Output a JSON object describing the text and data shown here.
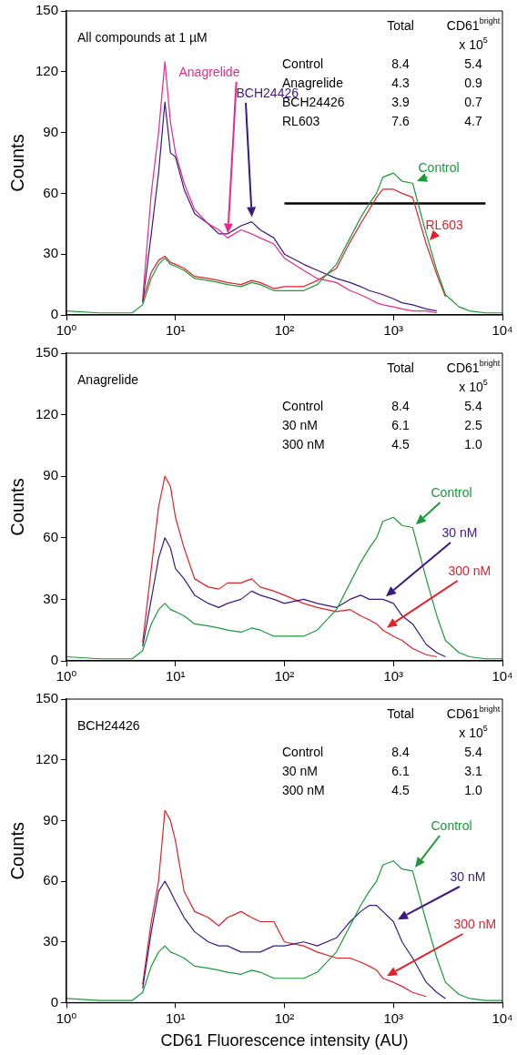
{
  "chart_data": [
    {
      "type": "line",
      "ylabel": "Counts",
      "log": "x",
      "xlim": [
        1,
        10000
      ],
      "ylim": [
        0,
        150
      ],
      "xticks": [
        {
          "value": 1,
          "label": "10⁰"
        },
        {
          "value": 10,
          "label": "10¹"
        },
        {
          "value": 100,
          "label": "10²"
        },
        {
          "value": 1000,
          "label": "10³"
        },
        {
          "value": 10000,
          "label": "10⁴"
        }
      ],
      "yticks": [
        0,
        30,
        60,
        90,
        120,
        150
      ],
      "legend": false,
      "grid": false,
      "x": [
        1,
        2,
        3,
        4,
        5,
        6,
        7,
        8,
        9,
        10,
        12,
        15,
        20,
        25,
        30,
        40,
        50,
        60,
        80,
        100,
        150,
        200,
        300,
        400,
        500,
        600,
        700,
        800,
        1000,
        1200,
        1500,
        2000,
        2500,
        3000,
        4000,
        5000,
        7000,
        10000
      ],
      "series": [
        {
          "name": "Control",
          "color": "#1a9a3a",
          "values": [
            2,
            1,
            1,
            1,
            5,
            18,
            25,
            28,
            25,
            24,
            22,
            18,
            17,
            16,
            15,
            14,
            16,
            15,
            12,
            12,
            12,
            15,
            25,
            38,
            48,
            55,
            60,
            68,
            70,
            66,
            65,
            40,
            22,
            10,
            4,
            2,
            1,
            1
          ]
        },
        {
          "name": "Anagrelide",
          "color": "#e8288c",
          "values": [
            null,
            null,
            null,
            null,
            8,
            60,
            90,
            125,
            95,
            80,
            65,
            52,
            45,
            42,
            38,
            42,
            40,
            38,
            35,
            28,
            22,
            18,
            16,
            12,
            10,
            8,
            6,
            5,
            4,
            3,
            2,
            2,
            1,
            null,
            null,
            null,
            null,
            null
          ]
        },
        {
          "name": "BCH24426",
          "color": "#3a1a80",
          "values": [
            null,
            null,
            null,
            null,
            6,
            40,
            70,
            105,
            80,
            78,
            62,
            50,
            45,
            40,
            40,
            44,
            46,
            42,
            38,
            30,
            25,
            22,
            18,
            16,
            14,
            12,
            11,
            10,
            8,
            6,
            5,
            3,
            2,
            null,
            null,
            null,
            null,
            null
          ]
        },
        {
          "name": "RL603",
          "color": "#e0202a",
          "values": [
            null,
            null,
            null,
            null,
            7,
            21,
            27,
            29,
            26,
            25,
            23,
            19,
            18,
            17,
            16,
            15,
            17,
            16,
            13,
            14,
            14,
            17,
            23,
            36,
            45,
            52,
            58,
            62,
            62,
            60,
            58,
            35,
            20,
            9,
            null,
            null,
            null,
            null
          ]
        },
        {
          "type": "line",
          "color": "#000000",
          "x": [
            100,
            7000
          ],
          "values": [
            55,
            55
          ]
        }
      ],
      "annotations": [
        "All compounds at 1 µM",
        "\tTotal\tCD61$^{bright}$",
        "\t\tx 10$^{5}$",
        "Control\t8.4\t5.4",
        "Anagrelide\t4.3\t0.9",
        "BCH24426\t3.9\t0.7",
        "RL603\t7.6\t4.7"
      ]
    },
    {
      "type": "line",
      "ylabel": "Counts",
      "log": "x",
      "xlim": [
        1,
        10000
      ],
      "ylim": [
        0,
        150
      ],
      "xticks": [
        {
          "value": 1,
          "label": "10⁰"
        },
        {
          "value": 10,
          "label": "10¹"
        },
        {
          "value": 100,
          "label": "10²"
        },
        {
          "value": 1000,
          "label": "10³"
        },
        {
          "value": 10000,
          "label": "10⁴"
        }
      ],
      "yticks": [
        0,
        30,
        60,
        90,
        120,
        150
      ],
      "legend": false,
      "grid": false,
      "x": [
        1,
        2,
        3,
        4,
        5,
        6,
        7,
        8,
        9,
        10,
        12,
        15,
        20,
        25,
        30,
        40,
        50,
        60,
        80,
        100,
        150,
        200,
        300,
        400,
        500,
        600,
        700,
        800,
        1000,
        1200,
        1500,
        2000,
        2500,
        3000,
        4000,
        5000,
        7000,
        10000
      ],
      "series": [
        {
          "name": "Control",
          "color": "#1a9a3a",
          "values": [
            2,
            1,
            1,
            1,
            5,
            18,
            25,
            28,
            25,
            24,
            22,
            18,
            17,
            16,
            15,
            14,
            16,
            15,
            12,
            12,
            12,
            15,
            25,
            38,
            48,
            55,
            60,
            68,
            70,
            66,
            65,
            40,
            22,
            10,
            4,
            2,
            1,
            1
          ]
        },
        {
          "name": "30 nM",
          "color": "#3a1a80",
          "values": [
            null,
            null,
            null,
            null,
            7,
            30,
            50,
            60,
            55,
            45,
            40,
            32,
            28,
            26,
            28,
            30,
            34,
            32,
            30,
            28,
            30,
            28,
            26,
            30,
            32,
            30,
            30,
            30,
            28,
            22,
            18,
            8,
            4,
            2,
            null,
            null,
            null,
            null
          ]
        },
        {
          "name": "300 nM",
          "color": "#e0202a",
          "values": [
            null,
            null,
            null,
            null,
            9,
            45,
            75,
            90,
            85,
            70,
            55,
            40,
            36,
            35,
            38,
            38,
            40,
            36,
            34,
            32,
            28,
            26,
            24,
            25,
            22,
            20,
            18,
            15,
            12,
            10,
            6,
            3,
            2,
            null,
            null,
            null,
            null,
            null
          ]
        }
      ],
      "annotations": [
        "Anagrelide",
        "\tTotal\tCD61$^{bright}$",
        "\t\tx 10$^{5}$",
        "Control\t8.4\t5.4",
        "30 nM\t6.1\t2.5",
        "300 nM\t4.5\t1.0"
      ]
    },
    {
      "type": "line",
      "xlabel": "CD61 Fluorescence intensity (AU)",
      "ylabel": "Counts",
      "log": "x",
      "xlim": [
        1,
        10000
      ],
      "ylim": [
        0,
        150
      ],
      "xticks": [
        {
          "value": 1,
          "label": "10⁰"
        },
        {
          "value": 10,
          "label": "10¹"
        },
        {
          "value": 100,
          "label": "10²"
        },
        {
          "value": 1000,
          "label": "10³"
        },
        {
          "value": 10000,
          "label": "10⁴"
        }
      ],
      "yticks": [
        0,
        30,
        60,
        90,
        120,
        150
      ],
      "legend": false,
      "grid": false,
      "x": [
        1,
        2,
        3,
        4,
        5,
        6,
        7,
        8,
        9,
        10,
        12,
        15,
        20,
        25,
        30,
        40,
        50,
        60,
        80,
        100,
        150,
        200,
        300,
        400,
        500,
        600,
        700,
        800,
        1000,
        1200,
        1500,
        2000,
        2500,
        3000,
        4000,
        5000,
        7000,
        10000
      ],
      "series": [
        {
          "name": "Control",
          "color": "#1a9a3a",
          "values": [
            2,
            1,
            1,
            1,
            5,
            18,
            25,
            28,
            25,
            24,
            22,
            18,
            17,
            16,
            15,
            14,
            16,
            15,
            12,
            12,
            12,
            15,
            25,
            38,
            48,
            55,
            60,
            68,
            70,
            66,
            65,
            40,
            22,
            10,
            4,
            2,
            1,
            1
          ]
        },
        {
          "name": "30 nM",
          "color": "#3a1a80",
          "values": [
            null,
            null,
            null,
            null,
            7,
            35,
            55,
            60,
            55,
            50,
            42,
            35,
            30,
            28,
            28,
            25,
            25,
            25,
            28,
            28,
            30,
            28,
            32,
            40,
            45,
            48,
            48,
            45,
            40,
            30,
            22,
            10,
            5,
            2,
            null,
            null,
            null,
            null
          ]
        },
        {
          "name": "300 nM",
          "color": "#e0202a",
          "values": [
            null,
            null,
            null,
            null,
            9,
            40,
            60,
            95,
            90,
            80,
            55,
            45,
            42,
            38,
            42,
            45,
            42,
            40,
            40,
            30,
            28,
            25,
            22,
            22,
            20,
            18,
            16,
            12,
            10,
            8,
            5,
            3,
            null,
            null,
            null,
            null,
            null,
            null
          ]
        }
      ],
      "annotations": [
        "BCH24426",
        "\tTotal\tCD61$^{bright}$",
        "\t\tx 10$^{5}$",
        "Control\t8.4\t5.4",
        "30 nM\t6.1\t3.1",
        "300 nM\t4.5\t1.0"
      ]
    }
  ]
}
